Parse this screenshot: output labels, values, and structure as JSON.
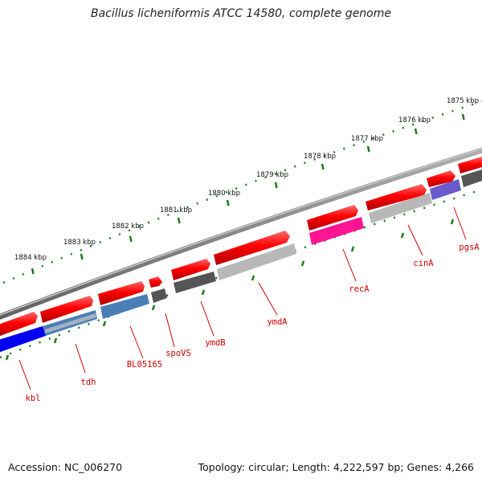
{
  "title": "Bacillus licheniformis ATCC 14580, complete genome",
  "footer": {
    "accession": "Accession: NC_006270",
    "summary": "Topology: circular; Length: 4,222,597 bp; Genes: 4,266"
  },
  "ruler": {
    "unit": "kbp",
    "ticks": [
      {
        "label": "1875 kbp"
      },
      {
        "label": "1876 kbp"
      },
      {
        "label": "1877 kbp"
      },
      {
        "label": "1878 kbp"
      },
      {
        "label": "1879 kbp"
      },
      {
        "label": "1880 kbp"
      },
      {
        "label": "1881 kbp"
      },
      {
        "label": "1882 kbp"
      },
      {
        "label": "1883 kbp"
      },
      {
        "label": "1884 kbp"
      }
    ]
  },
  "colors": {
    "backbone": "#808080",
    "cds": "#ff0000",
    "label": "#cc0000",
    "tick": "#1a7a1a",
    "blue_feature": "#0000ee",
    "steelblue_feature": "#4a7fb5",
    "gray_feature": "#b8b8b8",
    "darkgray_feature": "#555555",
    "magenta_feature": "#ff1493",
    "purple_feature": "#6a5acd"
  },
  "genes": [
    {
      "name": "kbl",
      "color": "blue_feature"
    },
    {
      "name": "tdh",
      "color": "steelblue_feature"
    },
    {
      "name": "BL05165",
      "color": "steelblue_feature"
    },
    {
      "name": "spoVS",
      "color": "darkgray_feature"
    },
    {
      "name": "ymdB",
      "color": "darkgray_feature"
    },
    {
      "name": "ymdA",
      "color": "gray_feature"
    },
    {
      "name": "recA",
      "color": "magenta_feature"
    },
    {
      "name": "cinA",
      "color": "gray_feature"
    },
    {
      "name": "pgsA",
      "color": "purple_feature"
    }
  ]
}
